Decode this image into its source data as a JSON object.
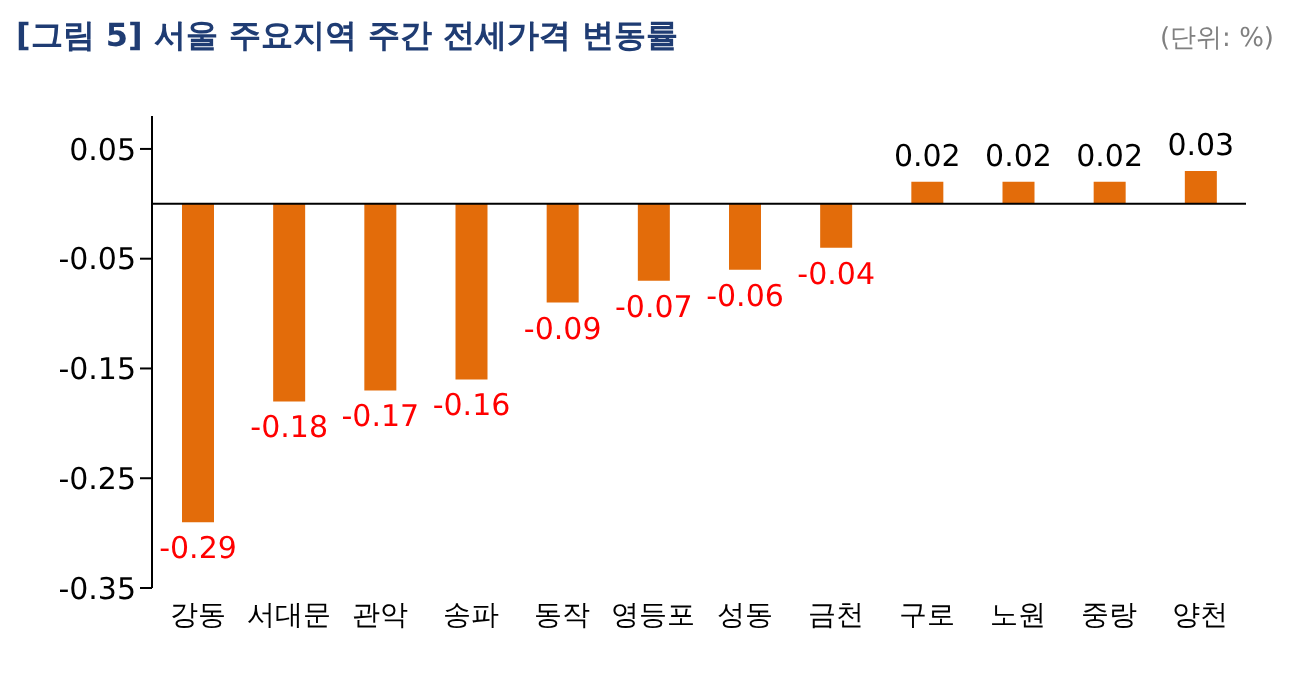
{
  "chart_data": {
    "type": "bar",
    "title": "[그림 5] 서울 주요지역 주간 전세가격 변동률",
    "annotations": [
      "(단위: %)"
    ],
    "categories": [
      "강동",
      "서대문",
      "관악",
      "송파",
      "동작",
      "영등포",
      "성동",
      "금천",
      "구로",
      "노원",
      "중랑",
      "양천"
    ],
    "values": [
      -0.29,
      -0.18,
      -0.17,
      -0.16,
      -0.09,
      -0.07,
      -0.06,
      -0.04,
      0.02,
      0.02,
      0.02,
      0.03
    ],
    "color": "#e36c0a",
    "ylim": [
      -0.35,
      0.08
    ],
    "yticks": [
      0.05,
      -0.05,
      -0.15,
      -0.25,
      -0.35
    ],
    "grid": false,
    "data_labels": true
  }
}
